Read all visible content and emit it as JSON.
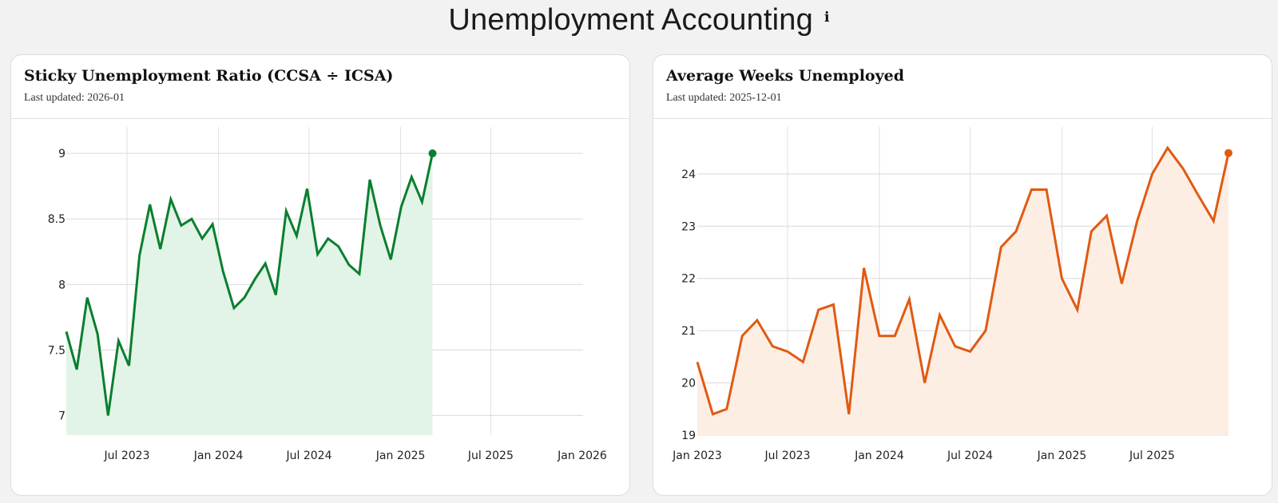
{
  "page": {
    "title": "Unemployment Accounting",
    "info_icon": "info-icon"
  },
  "charts": [
    {
      "title": "Sticky Unemployment Ratio (CCSA ÷ ICSA)",
      "last_updated": "Last updated: 2026-01"
    },
    {
      "title": "Average Weeks Unemployed",
      "last_updated": "Last updated: 2025-12-01"
    }
  ],
  "chart_data": [
    {
      "type": "area",
      "title": "Sticky Unemployment Ratio (CCSA ÷ ICSA)",
      "color": "#0a7f2e",
      "fill": "#e2f4e7",
      "x_start": "2023-03",
      "x_end": "2026-01",
      "ylim": [
        6.85,
        9.08
      ],
      "yticks": [
        7,
        7.5,
        8,
        8.5,
        9
      ],
      "xticks": [
        {
          "label": "Jul 2023",
          "date": "2023-07"
        },
        {
          "label": "Jan 2024",
          "date": "2024-01"
        },
        {
          "label": "Jul 2024",
          "date": "2024-07"
        },
        {
          "label": "Jan 2025",
          "date": "2025-01"
        },
        {
          "label": "Jul 2025",
          "date": "2025-07"
        },
        {
          "label": "Jan 2026",
          "date": "2026-01"
        }
      ],
      "grid": true,
      "points": [
        [
          "2023-03-01",
          7.64
        ],
        [
          "2023-03-22",
          7.35
        ],
        [
          "2023-04-12",
          7.9
        ],
        [
          "2023-05-03",
          7.62
        ],
        [
          "2023-05-24",
          7.0
        ],
        [
          "2023-06-14",
          7.57
        ],
        [
          "2023-07-05",
          7.38
        ],
        [
          "2023-07-26",
          8.22
        ],
        [
          "2023-08-16",
          8.61
        ],
        [
          "2023-09-06",
          8.27
        ],
        [
          "2023-09-27",
          8.65
        ],
        [
          "2023-10-18",
          8.45
        ],
        [
          "2023-11-08",
          8.5
        ],
        [
          "2023-11-29",
          8.35
        ],
        [
          "2023-12-20",
          8.46
        ],
        [
          "2024-01-10",
          8.1
        ],
        [
          "2024-02-01",
          7.82
        ],
        [
          "2024-02-22",
          7.9
        ],
        [
          "2024-03-14",
          8.04
        ],
        [
          "2024-04-04",
          8.16
        ],
        [
          "2024-04-25",
          7.92
        ],
        [
          "2024-05-16",
          8.56
        ],
        [
          "2024-06-06",
          8.37
        ],
        [
          "2024-06-27",
          8.73
        ],
        [
          "2024-07-18",
          8.23
        ],
        [
          "2024-08-08",
          8.35
        ],
        [
          "2024-08-29",
          8.29
        ],
        [
          "2024-09-19",
          8.15
        ],
        [
          "2024-10-10",
          8.08
        ],
        [
          "2024-10-31",
          8.8
        ],
        [
          "2024-11-21",
          8.45
        ],
        [
          "2024-12-12",
          8.19
        ],
        [
          "2025-01-02",
          8.59
        ],
        [
          "2025-01-23",
          8.82
        ],
        [
          "2025-02-13",
          8.63
        ],
        [
          "2025-03-06",
          9.0
        ]
      ],
      "end_marker": true
    },
    {
      "type": "area",
      "title": "Average Weeks Unemployed",
      "color": "#e05a12",
      "fill": "#fdeee4",
      "x_start": "2023-01",
      "x_end": "2025-12",
      "ylim": [
        19,
        24.9
      ],
      "yticks": [
        19,
        20,
        21,
        22,
        23,
        24
      ],
      "xticks": [
        {
          "label": "Jan 2023",
          "date": "2023-01"
        },
        {
          "label": "Jul 2023",
          "date": "2023-07"
        },
        {
          "label": "Jan 2024",
          "date": "2024-01"
        },
        {
          "label": "Jul 2024",
          "date": "2024-07"
        },
        {
          "label": "Jan 2025",
          "date": "2025-01"
        },
        {
          "label": "Jul 2025",
          "date": "2025-07"
        }
      ],
      "grid": true,
      "points": [
        [
          "2023-01",
          20.4
        ],
        [
          "2023-02",
          19.4
        ],
        [
          "2023-03",
          19.5
        ],
        [
          "2023-04",
          20.9
        ],
        [
          "2023-05",
          21.2
        ],
        [
          "2023-06",
          20.7
        ],
        [
          "2023-07",
          20.6
        ],
        [
          "2023-08",
          20.4
        ],
        [
          "2023-09",
          21.4
        ],
        [
          "2023-10",
          21.5
        ],
        [
          "2023-11",
          19.4
        ],
        [
          "2023-12",
          22.2
        ],
        [
          "2024-01",
          20.9
        ],
        [
          "2024-02",
          20.9
        ],
        [
          "2024-03",
          21.6
        ],
        [
          "2024-04",
          20.0
        ],
        [
          "2024-05",
          21.3
        ],
        [
          "2024-06",
          20.7
        ],
        [
          "2024-07",
          20.6
        ],
        [
          "2024-08",
          21.0
        ],
        [
          "2024-09",
          22.6
        ],
        [
          "2024-10",
          22.9
        ],
        [
          "2024-11",
          23.7
        ],
        [
          "2024-12",
          23.7
        ],
        [
          "2025-01",
          22.0
        ],
        [
          "2025-02",
          21.4
        ],
        [
          "2025-03",
          22.9
        ],
        [
          "2025-04",
          23.2
        ],
        [
          "2025-05",
          21.9
        ],
        [
          "2025-06",
          23.1
        ],
        [
          "2025-07",
          24.0
        ],
        [
          "2025-08",
          24.5
        ],
        [
          "2025-09",
          24.1
        ],
        [
          "2025-10",
          23.6
        ],
        [
          "2025-11",
          23.1
        ],
        [
          "2025-12",
          24.4
        ]
      ],
      "end_marker": true
    }
  ]
}
